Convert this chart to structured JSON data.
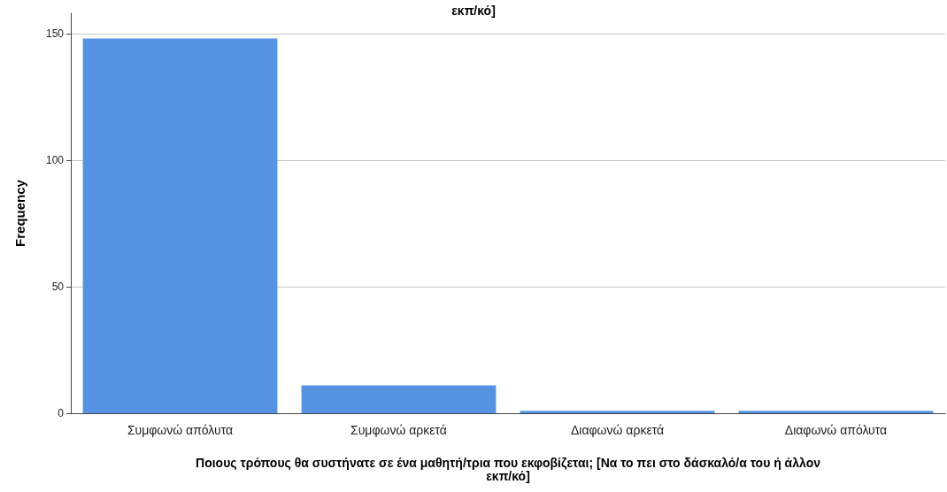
{
  "chart_data": {
    "type": "bar",
    "title": "εκπ/κό]",
    "xlabel": "Ποιους τρόπους θα συστήνατε σε ένα μαθητή/τρια που εκφοβίζεται; [Να το πει στο δάσκαλό/α του ή άλλον εκπ/κό]",
    "ylabel": "Frequency",
    "categories": [
      "Συμφωνώ απόλυτα",
      "Συμφωνώ αρκετά",
      "Διαφωνώ αρκετά",
      "Διαφωνώ απόλυτα"
    ],
    "values": [
      148,
      11,
      1,
      1
    ],
    "color": "#5694e3",
    "ylim": [
      0,
      158
    ],
    "yticks": [
      0,
      50,
      100,
      150
    ],
    "grid": "y"
  }
}
